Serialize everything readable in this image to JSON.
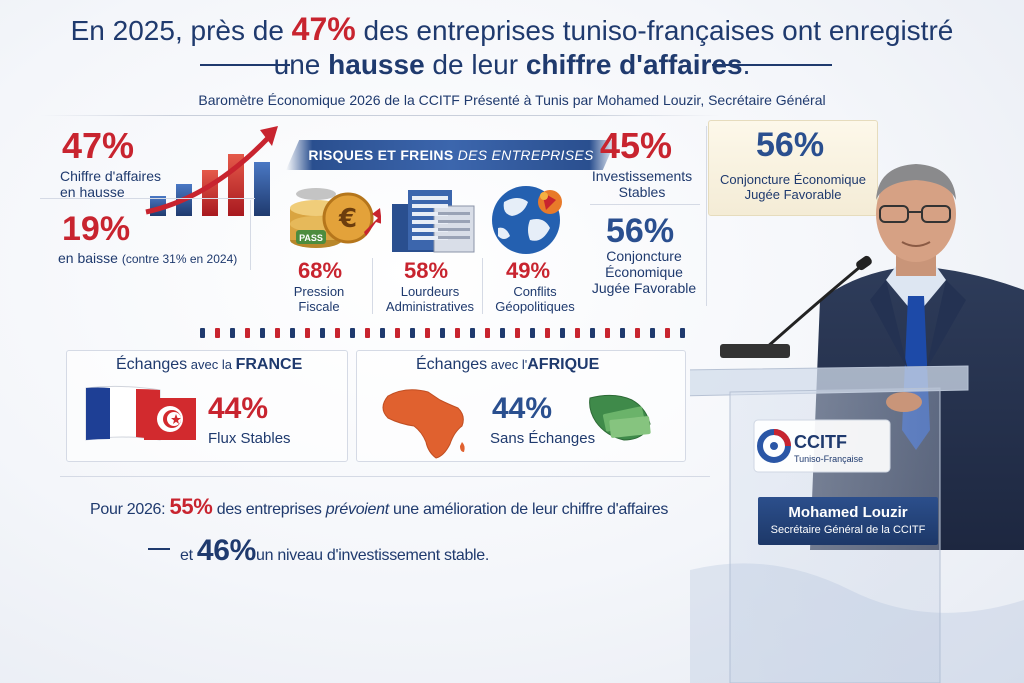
{
  "headline": {
    "line1_a": "En 2025, près de ",
    "line1_pct": "47%",
    "line1_b": " des entreprises tuniso-françaises ont enregistré",
    "line2_a": "une ",
    "line2_hausse": "hausse",
    "line2_b": " de leur ",
    "line2_chiffre": "chiffre d'affaires",
    "line2_dot": "."
  },
  "subtitle": "Baromètre Économique 2026 de la CCITF Présenté à Tunis par Mohamed Louzir, Secrétaire Général",
  "left_stats": {
    "hausse_value": "47%",
    "hausse_label_1": "Chiffre d'affaires",
    "hausse_label_2": "en hausse",
    "baisse_value": "19%",
    "baisse_label": "en baisse",
    "baisse_note": "(contre 31% en 2024)"
  },
  "risks": {
    "banner_bold": "RISQUES ET FREINS",
    "banner_italic": " DES ENTREPRISES",
    "items": [
      {
        "value": "68%",
        "label_1": "Pression",
        "label_2": "Fiscale",
        "icon_text": "PASS"
      },
      {
        "value": "58%",
        "label_1": "Lourdeurs",
        "label_2": "Administratives"
      },
      {
        "value": "49%",
        "label_1": "Conflits",
        "label_2": "Géopolitiques"
      }
    ]
  },
  "invest": {
    "value": "45%",
    "label_1": "Investissements",
    "label_2": "Stables"
  },
  "conj": {
    "value": "56%",
    "label_1": "Conjoncture",
    "label_2": "Économique",
    "label_3": "Jugée Favorable"
  },
  "conj_top": {
    "value": "56%",
    "label_1": "Conjoncture Économique",
    "label_2": "Jugée Favorable"
  },
  "france": {
    "prefix": "Échanges",
    "avec": " avec la ",
    "country": "FRANCE",
    "value": "44%",
    "label": "Flux Stables"
  },
  "afrique": {
    "prefix": "Échanges",
    "avec": " avec l'",
    "country": "AFRIQUE",
    "value": "44%",
    "label": "Sans Échanges"
  },
  "outlook": {
    "line1_a": "Pour 2026: ",
    "line1_pct": "55%",
    "line1_b": " des entreprises ",
    "line1_i": "prévoient",
    "line1_c": " une amélioration de leur chiffre d'affaires",
    "line2_a": "et ",
    "line2_pct": "46%",
    "line2_b": "un niveau d'investissement stable."
  },
  "podium": {
    "logo_text": "CCITF",
    "logo_sub": "Tuniso-Française"
  },
  "caption": {
    "name": "Mohamed Louzir",
    "title": "Secrétaire Général de la CCITF"
  },
  "colors": {
    "navy": "#1f3a6e",
    "red": "#c8242f",
    "blue": "#2a56a6"
  }
}
